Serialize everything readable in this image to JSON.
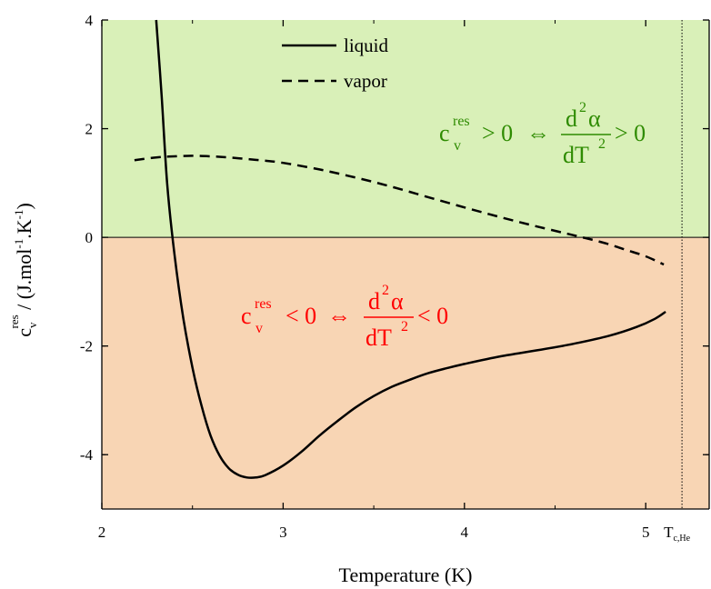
{
  "chart_data": {
    "type": "line",
    "title": "",
    "xlabel": "Temperature (K)",
    "ylabel": {
      "parts": [
        "c",
        "v",
        "res",
        " / (J.mol",
        "-1",
        ".K",
        "-1",
        ")"
      ]
    },
    "xlim": [
      2.0,
      5.35
    ],
    "ylim": [
      -5,
      4
    ],
    "x_ticks": [
      2,
      3,
      4,
      5
    ],
    "x_tick_labels": [
      "2",
      "3",
      "4",
      "5"
    ],
    "y_ticks": [
      -4,
      -2,
      0,
      2,
      4
    ],
    "y_tick_labels": [
      "-4",
      "-2",
      "0",
      "2",
      "4"
    ],
    "critical_marker": {
      "x": 5.2,
      "label_main": "T",
      "label_sub": "c,He"
    },
    "regions": [
      {
        "from": 0,
        "to": 4,
        "color": "#d9f0b8"
      },
      {
        "from": -5,
        "to": 0,
        "color": "#f8d5b4"
      }
    ],
    "legend": {
      "position": "top-center",
      "entries": [
        {
          "label": "liquid",
          "style": "solid"
        },
        {
          "label": "vapor",
          "style": "dashed"
        }
      ]
    },
    "series": [
      {
        "name": "liquid",
        "style": "solid",
        "color": "#000000",
        "x": [
          2.3,
          2.33,
          2.36,
          2.4,
          2.45,
          2.5,
          2.55,
          2.6,
          2.65,
          2.7,
          2.75,
          2.8,
          2.85,
          2.9,
          3.0,
          3.1,
          3.2,
          3.3,
          3.4,
          3.5,
          3.6,
          3.7,
          3.8,
          3.9,
          4.0,
          4.2,
          4.4,
          4.6,
          4.8,
          4.95,
          5.05,
          5.11
        ],
        "values": [
          4.0,
          2.6,
          1.0,
          -0.3,
          -1.5,
          -2.4,
          -3.1,
          -3.65,
          -4.02,
          -4.25,
          -4.37,
          -4.42,
          -4.42,
          -4.38,
          -4.2,
          -3.95,
          -3.65,
          -3.38,
          -3.13,
          -2.92,
          -2.75,
          -2.62,
          -2.5,
          -2.41,
          -2.33,
          -2.19,
          -2.08,
          -1.96,
          -1.81,
          -1.65,
          -1.5,
          -1.37
        ]
      },
      {
        "name": "vapor",
        "style": "dashed",
        "color": "#000000",
        "x": [
          2.18,
          2.3,
          2.4,
          2.5,
          2.6,
          2.7,
          2.8,
          2.9,
          3.0,
          3.2,
          3.4,
          3.6,
          3.8,
          4.0,
          4.2,
          4.4,
          4.6,
          4.7,
          4.8,
          4.9,
          5.0,
          5.1
        ],
        "values": [
          1.42,
          1.47,
          1.49,
          1.5,
          1.49,
          1.47,
          1.44,
          1.41,
          1.37,
          1.25,
          1.1,
          0.93,
          0.74,
          0.55,
          0.37,
          0.2,
          0.04,
          -0.04,
          -0.13,
          -0.24,
          -0.35,
          -0.5
        ]
      }
    ],
    "annotations": [
      {
        "region": "positive",
        "color": "#2e8b00",
        "lhs_main": "c",
        "lhs_sup": "res",
        "lhs_sub": "v",
        "relation1": "> 0",
        "equiv": "⇔",
        "num_main": "d",
        "num_sup": "2",
        "num_tail": "α",
        "den_main": "dT",
        "den_sup": "2",
        "relation2": "> 0"
      },
      {
        "region": "negative",
        "color": "#ff0000",
        "lhs_main": "c",
        "lhs_sup": "res",
        "lhs_sub": "v",
        "relation1": "< 0",
        "equiv": "⇔",
        "num_main": "d",
        "num_sup": "2",
        "num_tail": "α",
        "den_main": "dT",
        "den_sup": "2",
        "relation2": "< 0"
      }
    ]
  }
}
